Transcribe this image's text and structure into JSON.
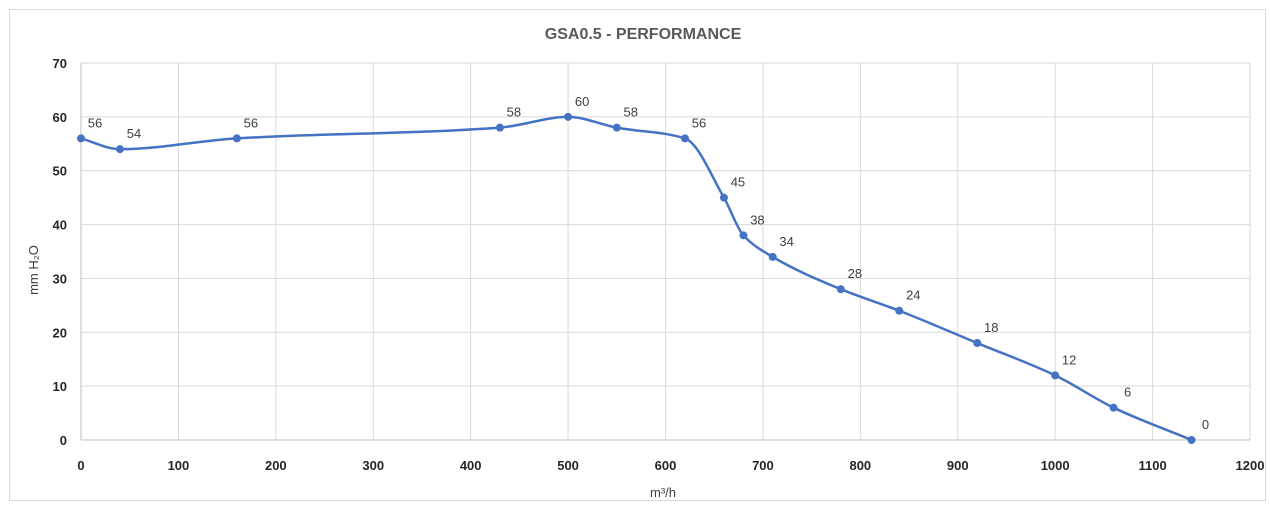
{
  "chart_data": {
    "type": "line",
    "title": "GSA0.5 - PERFORMANCE",
    "xlabel": "m³/h",
    "ylabel": "mm H₂O",
    "xlim": [
      0,
      1200
    ],
    "ylim": [
      0,
      70
    ],
    "xticks": [
      0,
      100,
      200,
      300,
      400,
      500,
      600,
      700,
      800,
      900,
      1000,
      1100,
      1200
    ],
    "yticks": [
      0,
      10,
      20,
      30,
      40,
      50,
      60,
      70
    ],
    "grid": true,
    "smooth": true,
    "series": [
      {
        "color": "#4472c4",
        "x": [
          0,
          40,
          160,
          430,
          500,
          550,
          620,
          660,
          680,
          710,
          780,
          840,
          920,
          1000,
          1060,
          1140
        ],
        "y": [
          56,
          54,
          56,
          58,
          60,
          58,
          56,
          45,
          38,
          34,
          28,
          24,
          18,
          12,
          6,
          0
        ],
        "labels": [
          "56",
          "54",
          "56",
          "58",
          "60",
          "58",
          "56",
          "45",
          "38",
          "34",
          "28",
          "24",
          "18",
          "12",
          "6",
          "0"
        ]
      }
    ]
  }
}
